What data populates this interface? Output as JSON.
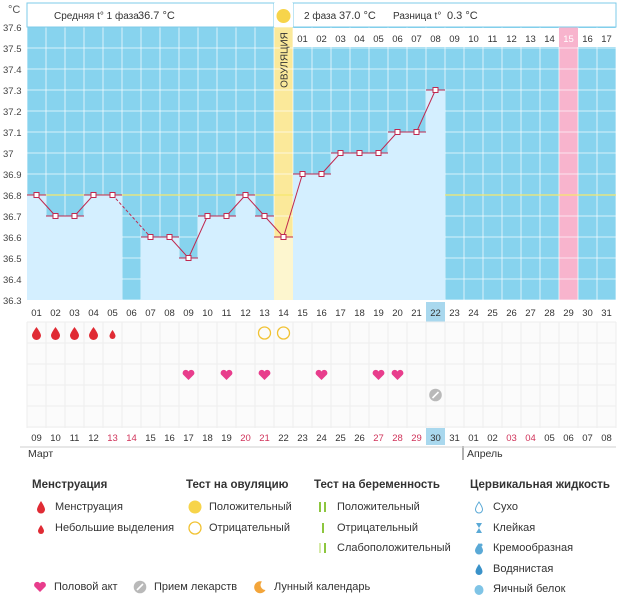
{
  "chart_data": {
    "type": "line",
    "unit_label": "°C",
    "ylim": [
      36.3,
      37.6
    ],
    "yticks": [
      "36.3",
      "36.4",
      "36.5",
      "36.6",
      "36.7",
      "36.8",
      "36.9",
      "37",
      "37.1",
      "37.2",
      "37.3",
      "37.4",
      "37.5",
      "37.6"
    ],
    "header": {
      "phase1_label": "Средняя t° 1 фаза",
      "phase1_value": "36.7 °C",
      "phase2_label": "2 фаза",
      "phase2_value": "37.0 °C",
      "diff_label": "Разница t°",
      "diff_value": "0.3 °C",
      "ovulation_label": "ОВУЛЯЦИЯ"
    },
    "top_days": [
      "01",
      "02",
      "03",
      "04",
      "05",
      "06",
      "07",
      "08",
      "09",
      "10",
      "11",
      "12",
      "13",
      "14",
      "01",
      "02",
      "03",
      "04",
      "05",
      "06",
      "07",
      "08",
      "09",
      "10",
      "11",
      "12",
      "13",
      "14",
      "15",
      "16",
      "17"
    ],
    "cycle_days": [
      "01",
      "02",
      "03",
      "04",
      "05",
      "06",
      "07",
      "08",
      "09",
      "10",
      "11",
      "12",
      "13",
      "14",
      "15",
      "16",
      "17",
      "18",
      "19",
      "20",
      "21",
      "22",
      "23",
      "24",
      "25",
      "26",
      "27",
      "28",
      "29",
      "30",
      "31"
    ],
    "temperatures": [
      36.8,
      36.7,
      36.7,
      36.8,
      36.8,
      null,
      36.6,
      36.6,
      36.5,
      36.7,
      36.7,
      36.8,
      36.7,
      36.6,
      36.9,
      36.9,
      37.0,
      37.0,
      37.0,
      37.1,
      37.1,
      37.3,
      null,
      null,
      null,
      null,
      null,
      null,
      null,
      null,
      null
    ],
    "coverline": 36.8,
    "ovulation_day_index": 13,
    "current_day_index": 21,
    "highlight_pink_index": 28,
    "highlight_blue_start": 14,
    "menstruation": [
      2,
      2,
      2,
      2,
      1,
      0,
      0,
      0,
      0,
      0,
      0,
      0,
      0,
      0,
      0,
      0,
      0,
      0,
      0,
      0,
      0,
      0,
      0,
      0,
      0,
      0,
      0,
      0,
      0,
      0,
      0
    ],
    "ovulation_tests": [
      null,
      null,
      null,
      null,
      null,
      null,
      null,
      null,
      null,
      null,
      null,
      null,
      "negative",
      "negative",
      null,
      null,
      null,
      null,
      null,
      null,
      null,
      null,
      null,
      null,
      null,
      null,
      null,
      null,
      null,
      null,
      null
    ],
    "intercourse": [
      0,
      0,
      0,
      0,
      0,
      0,
      0,
      0,
      1,
      0,
      1,
      0,
      1,
      0,
      0,
      1,
      0,
      0,
      1,
      1,
      0,
      0,
      0,
      0,
      0,
      0,
      0,
      0,
      0,
      0,
      0
    ],
    "medication": [
      0,
      0,
      0,
      0,
      0,
      0,
      0,
      0,
      0,
      0,
      0,
      0,
      0,
      0,
      0,
      0,
      0,
      0,
      0,
      0,
      0,
      1,
      0,
      0,
      0,
      0,
      0,
      0,
      0,
      0,
      0
    ],
    "dates": [
      "09",
      "10",
      "11",
      "12",
      "13",
      "14",
      "15",
      "16",
      "17",
      "18",
      "19",
      "20",
      "21",
      "22",
      "23",
      "24",
      "25",
      "26",
      "27",
      "28",
      "29",
      "30",
      "31",
      "01",
      "02",
      "03",
      "04",
      "05",
      "06",
      "07",
      "08"
    ],
    "weekend_dates": [
      4,
      5,
      11,
      12,
      18,
      19,
      20,
      25,
      26
    ],
    "month1": "Март",
    "month2": "Апрель",
    "colors": {
      "sky": "#87d3ee",
      "bar": "#d4efff",
      "ovulation": "#fbe99a",
      "pink": "#f8b4cd",
      "line": "#c0284f",
      "cover": "#f5e76c",
      "today": "#a9d8ee"
    }
  },
  "legend": {
    "menstruation": {
      "title": "Менструация",
      "items": [
        "Менструация",
        "Небольшие выделения"
      ]
    },
    "ovulation_test": {
      "title": "Тест на овуляцию",
      "items": [
        "Положительный",
        "Отрицательный"
      ]
    },
    "pregnancy_test": {
      "title": "Тест на беременность",
      "items": [
        "Положительный",
        "Отрицательный",
        "Слабоположительный"
      ]
    },
    "cervical": {
      "title": "Цервикальная жидкость",
      "items": [
        "Сухо",
        "Клейкая",
        "Кремообразная",
        "Водянистая",
        "Яичный белок"
      ]
    },
    "bottom": {
      "intercourse": "Половой акт",
      "medication": "Прием лекарств",
      "lunar": "Лунный календарь"
    }
  }
}
